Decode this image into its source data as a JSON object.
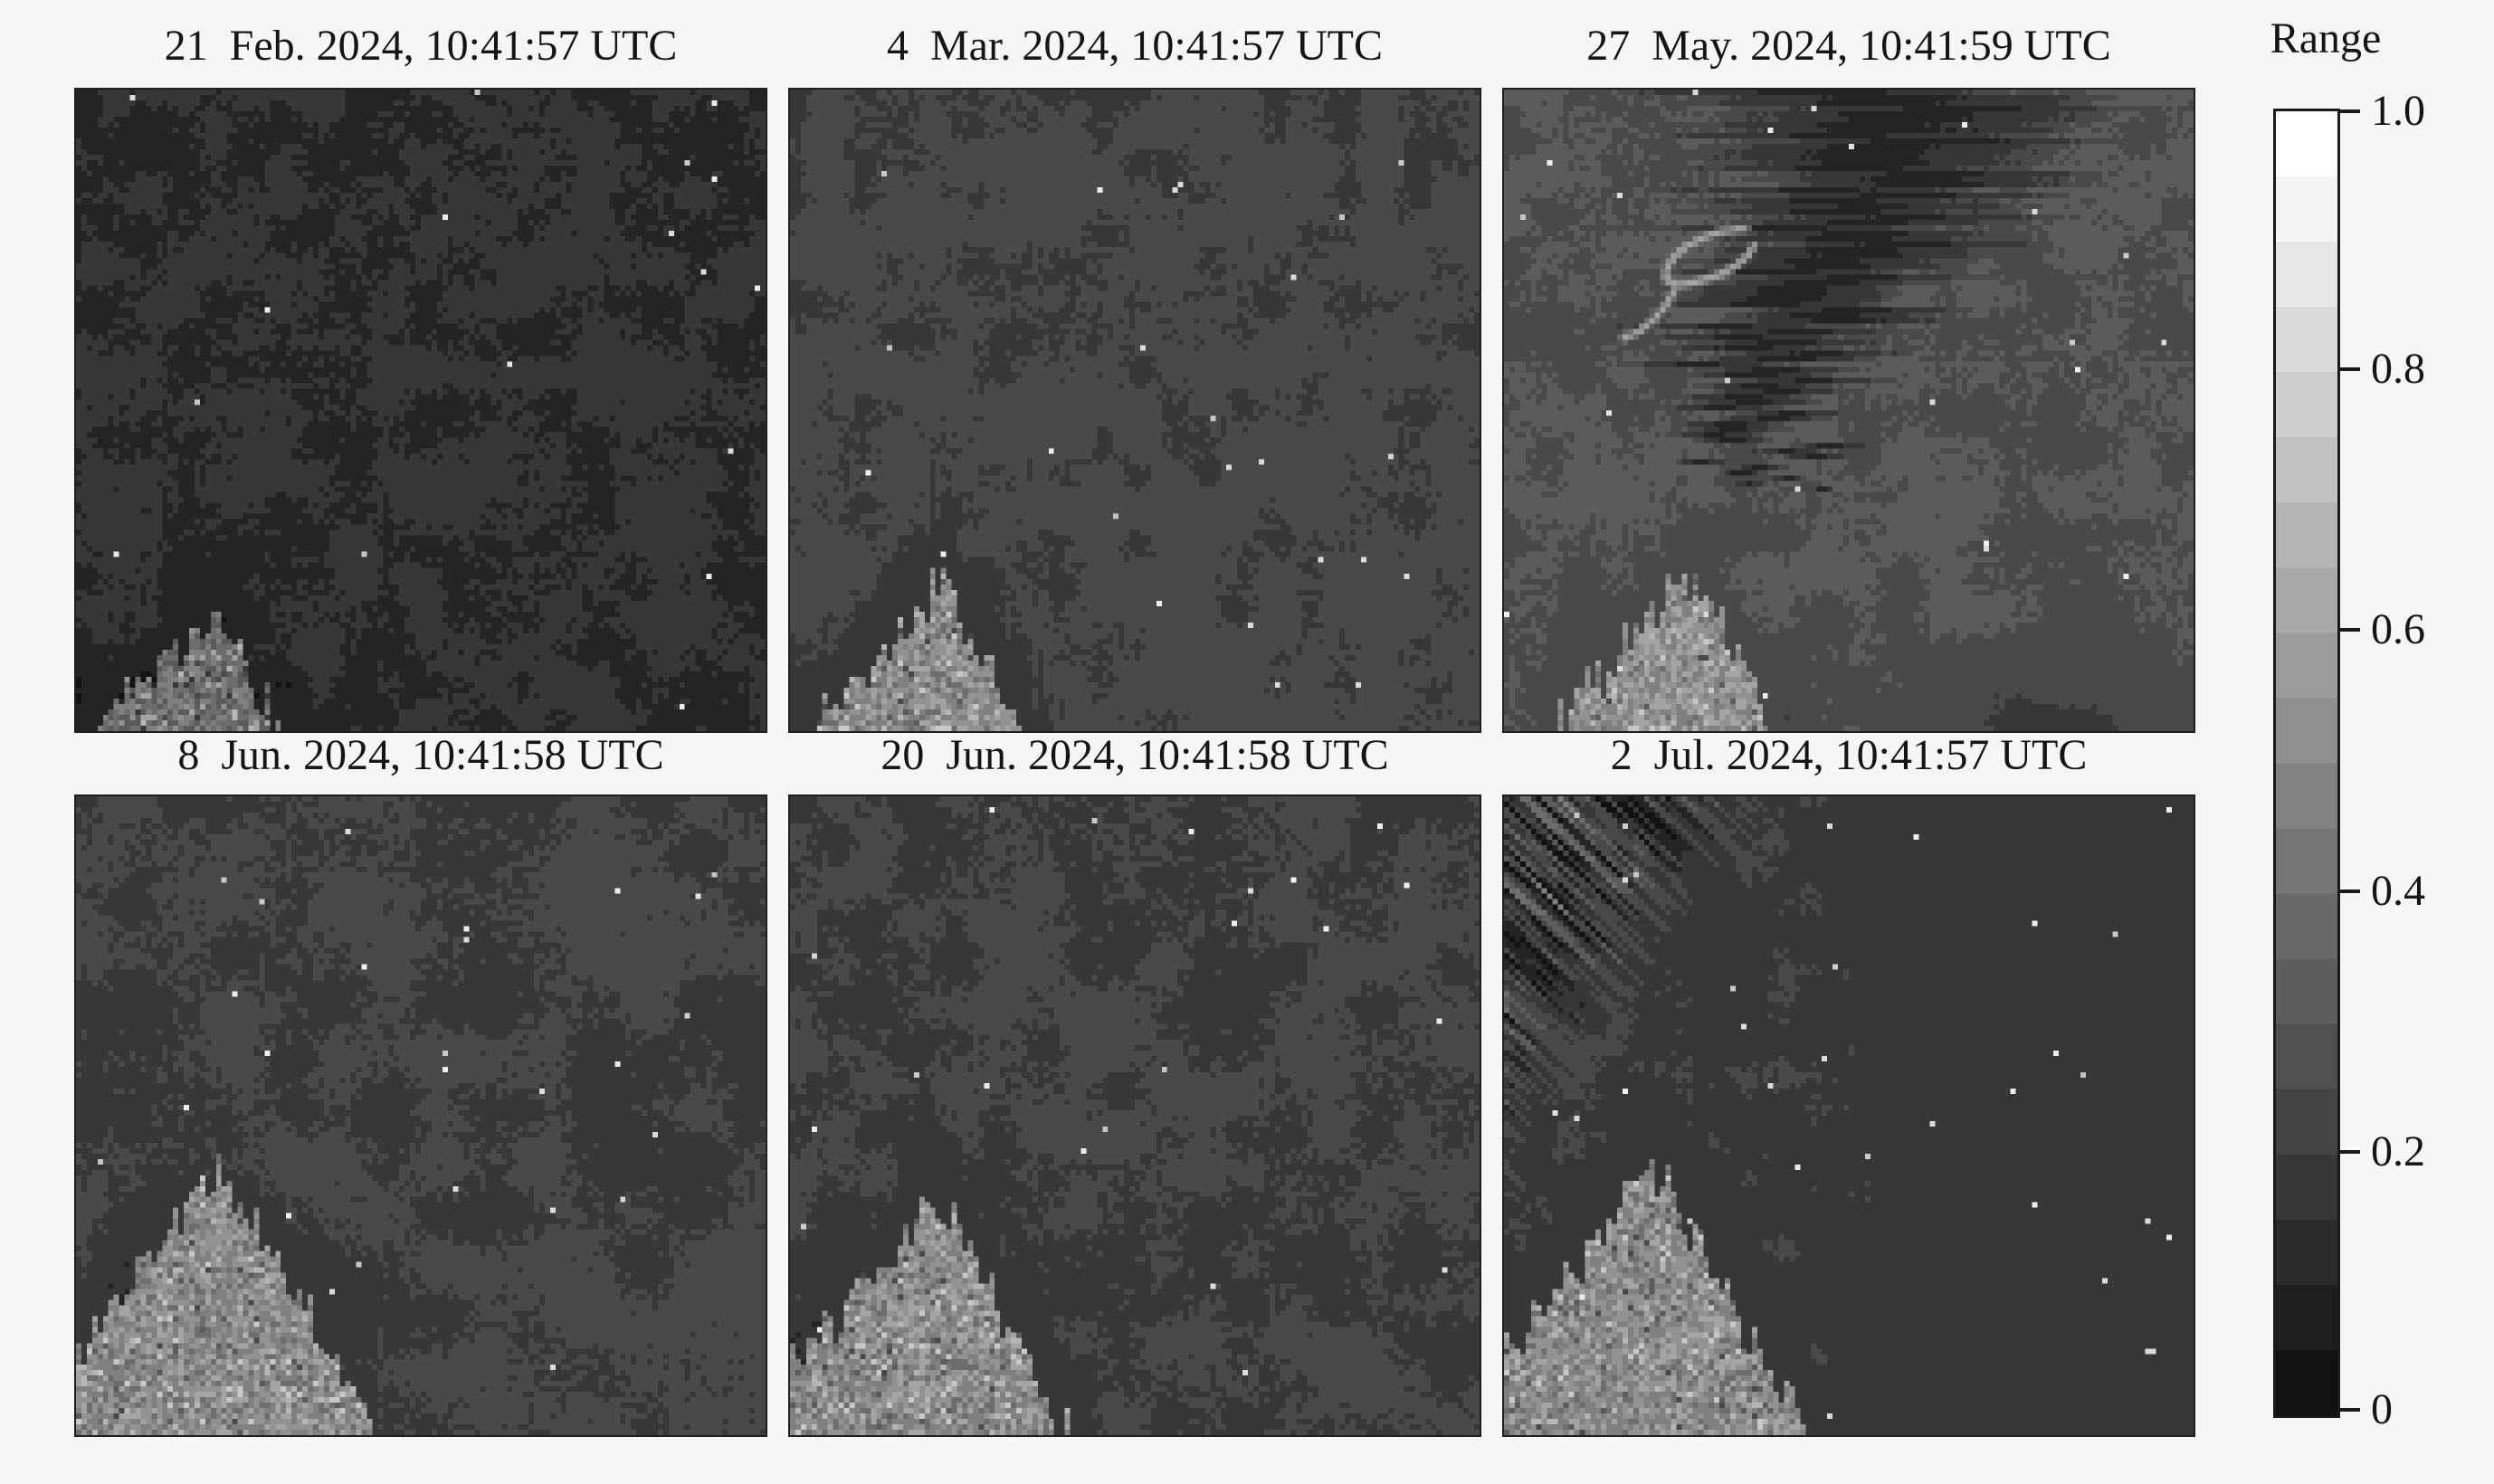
{
  "figure": {
    "kind": "satellite image time-series figure",
    "rows": 2,
    "cols": 3,
    "colors": {
      "background": "#f6f6f6",
      "text": "#151515",
      "frame": "#1f1f1f",
      "colormap_min": "#141414",
      "colormap_max": "#ffffff"
    }
  },
  "panels": [
    {
      "title": "21  Feb. 2024, 10:41:57 UTC",
      "seed": 101,
      "base": 0.185,
      "amp": 0.075,
      "profile": "uniform",
      "blob": 1.0,
      "plume": false,
      "squiggle": false,
      "streaks": false,
      "dark_corner": false,
      "speckles": 4,
      "land": {
        "apex_x": 0.2,
        "apex_y": 0.8,
        "slope_l": 1.1,
        "slope_r": 2.2,
        "bright": 0.44
      }
    },
    {
      "title": "4  Mar. 2024, 10:41:57 UTC",
      "seed": 202,
      "base": 0.26,
      "amp": 0.055,
      "profile": "top",
      "blob": 1.0,
      "plume": false,
      "squiggle": false,
      "streaks": false,
      "dark_corner": false,
      "speckles": 5,
      "land": {
        "apex_x": 0.22,
        "apex_y": 0.77,
        "slope_l": 1.2,
        "slope_r": 2.1,
        "bright": 0.54
      }
    },
    {
      "title": "27  May. 2024, 10:41:59 UTC",
      "seed": 303,
      "base": 0.32,
      "amp": 0.06,
      "profile": "uniform",
      "blob": 1.15,
      "plume": true,
      "squiggle": true,
      "streaks": false,
      "dark_corner": true,
      "speckles": 8,
      "land": {
        "apex_x": 0.27,
        "apex_y": 0.74,
        "slope_l": 1.25,
        "slope_r": 2.2,
        "bright": 0.56
      }
    },
    {
      "title": "8  Jun. 2024, 10:41:58 UTC",
      "seed": 404,
      "base": 0.25,
      "amp": 0.062,
      "profile": "blobby",
      "blob": 1.5,
      "plume": false,
      "squiggle": false,
      "streaks": false,
      "dark_corner": false,
      "speckles": 6,
      "land": {
        "apex_x": 0.215,
        "apex_y": 0.58,
        "slope_l": 1.3,
        "slope_r": 2.0,
        "bright": 0.54
      }
    },
    {
      "title": "20  Jun. 2024, 10:41:58 UTC",
      "seed": 505,
      "base": 0.25,
      "amp": 0.058,
      "profile": "lower",
      "blob": 1.2,
      "plume": false,
      "squiggle": false,
      "streaks": false,
      "dark_corner": false,
      "speckles": 6,
      "land": {
        "apex_x": 0.21,
        "apex_y": 0.62,
        "slope_l": 1.3,
        "slope_r": 2.0,
        "bright": 0.54
      }
    },
    {
      "title": "2  Jul. 2024, 10:41:57 UTC",
      "seed": 606,
      "base": 0.245,
      "amp": 0.035,
      "profile": "calm_right",
      "blob": 1.0,
      "plume": false,
      "squiggle": false,
      "streaks": true,
      "dark_corner": false,
      "speckles": 9,
      "land": {
        "apex_x": 0.22,
        "apex_y": 0.58,
        "slope_l": 1.3,
        "slope_r": 2.0,
        "bright": 0.54
      }
    }
  ],
  "colorbar": {
    "title": "Range",
    "ticks": [
      "1.0",
      "0.8",
      "0.6",
      "0.4",
      "0.2",
      "0"
    ],
    "tick_values": [
      1.0,
      0.8,
      0.6,
      0.4,
      0.2,
      0
    ],
    "levels": 20,
    "min": 0,
    "max": 1.0
  },
  "chart_data": {
    "type": "heatmap",
    "layout": "2x3 grid of pixelated grayscale image panels (SAR-like backscatter scenes of the same coastal area) sharing one vertical colorbar",
    "title": "",
    "panels": [
      {
        "title": "21  Feb. 2024, 10:41:57 UTC",
        "description": "darkest scene, mean value ~0.2; mottled lighter patches upper-left and center; dim bright coastal wedge at bottom-left; few bright point speckles"
      },
      {
        "title": "4  Mar. 2024, 10:41:57 UTC",
        "description": "mid-dark scene ~0.26 with darker blotches concentrated in upper half and right edge; bright speckled peninsula at bottom-left, apex ~22% from left"
      },
      {
        "title": "27  May. 2024, 10:41:59 UTC",
        "description": "lightest scene ~0.32 with large very dark plume (~0.1) descending from top center, small bright curl/loop feature inside plume upper-left; bright peninsula bottom-left; dark patch bottom-right"
      },
      {
        "title": "8  Jun. 2024, 10:41:58 UTC",
        "description": "scene ~0.25 with large soft dark blobs mid-left and lower half; bright peninsula reaching bottom-left corner, apex ~58% down"
      },
      {
        "title": "20  Jun. 2024, 10:41:58 UTC",
        "description": "scene ~0.25, smooth upper-center, darker blotches on right side and lower half; bright peninsula at bottom-left"
      },
      {
        "title": "2  Jul. 2024, 10:41:57 UTC",
        "description": "most uniform scene ~0.245; diagonal light/dark streak texture confined to top-left corner; scattered tiny bright speckles; bright peninsula at bottom center-left"
      }
    ],
    "colorbar": {
      "label": "Range",
      "orientation": "vertical",
      "colormap": "gray (discrete, ~20 steps, black at 0 to white at 1)",
      "min": 0,
      "max": 1.0,
      "ticks": [
        0,
        0.2,
        0.4,
        0.6,
        0.8,
        1.0
      ]
    }
  }
}
